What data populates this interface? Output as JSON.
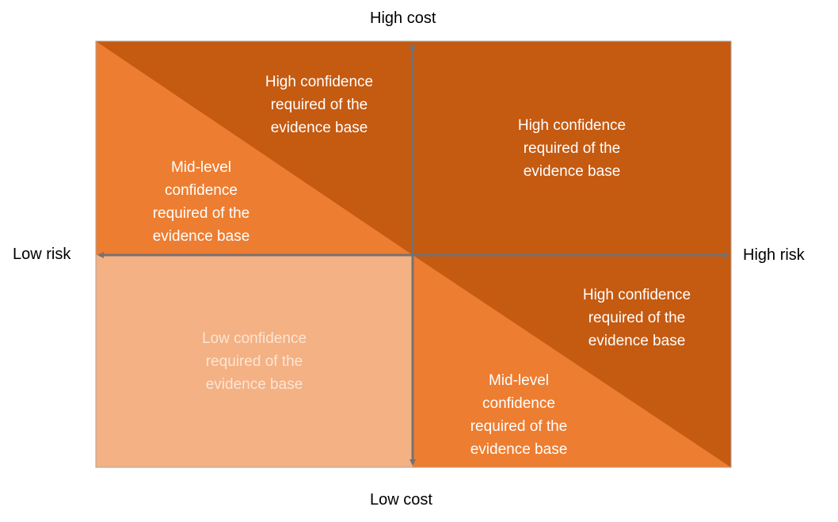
{
  "axes": {
    "top": "High cost",
    "bottom": "Low cost",
    "left": "Low risk",
    "right": "High risk"
  },
  "regions": {
    "top_left_upper": [
      "High confidence",
      "required of the",
      "evidence base"
    ],
    "top_left_lower": [
      "Mid-level",
      "confidence",
      "required of the",
      "evidence base"
    ],
    "top_right": [
      "High confidence",
      "required of the",
      "evidence base"
    ],
    "bottom_left": [
      "Low confidence",
      "required of the",
      "evidence base"
    ],
    "bottom_right_upper": [
      "High confidence",
      "required of the",
      "evidence base"
    ],
    "bottom_right_lower": [
      "Mid-level",
      "confidence",
      "required of the",
      "evidence base"
    ]
  },
  "colors": {
    "dark_orange": "#C55A11",
    "mid_orange": "#ED7D31",
    "light_orange": "#F4B183",
    "axis_gray": "#767171",
    "text_on_fill": "#FFFFFF",
    "light_region_text": "#FBE5D6"
  }
}
